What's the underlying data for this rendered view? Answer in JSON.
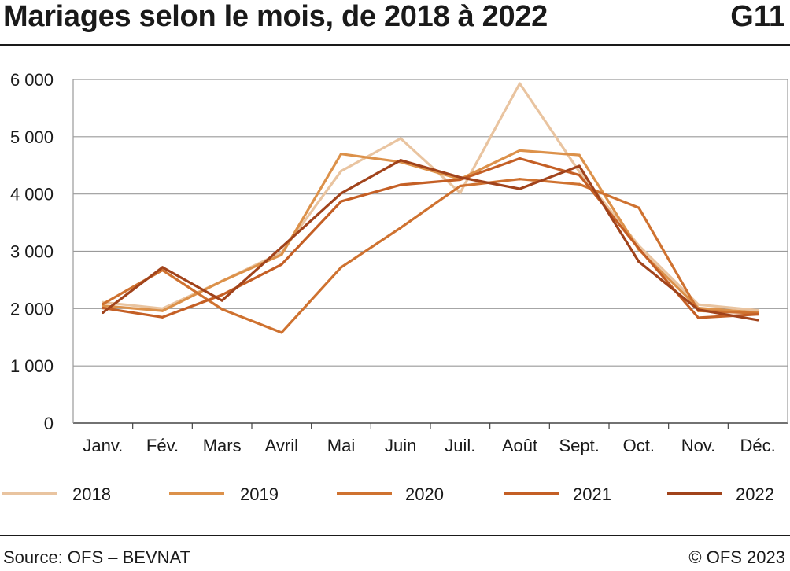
{
  "header": {
    "title": "Mariages selon le mois, de 2018 à 2022",
    "code": "G11"
  },
  "footer": {
    "source": "Source: OFS – BEVNAT",
    "copyright": "© OFS 2023"
  },
  "chart_data": {
    "type": "line",
    "title": "Mariages selon le mois, de 2018 à 2022",
    "xlabel": "",
    "ylabel": "",
    "ylim": [
      0,
      6000
    ],
    "yticks": [
      0,
      1000,
      2000,
      3000,
      4000,
      5000,
      6000
    ],
    "ytick_labels": [
      "0",
      "1 000",
      "2 000",
      "3 000",
      "4 000",
      "5 000",
      "6 000"
    ],
    "grid": true,
    "legend_position": "bottom",
    "categories": [
      "Janv.",
      "Fév.",
      "Mars",
      "Avril",
      "Mai",
      "Juin",
      "Juil.",
      "Août",
      "Sept.",
      "Oct.",
      "Nov.",
      "Déc."
    ],
    "series": [
      {
        "name": "2018",
        "color": "#e9c4a0",
        "values": [
          2110,
          2000,
          2480,
          2980,
          4400,
          4970,
          4020,
          5930,
          4390,
          3100,
          2070,
          1970
        ]
      },
      {
        "name": "2019",
        "color": "#dc914a",
        "values": [
          2050,
          1960,
          2480,
          2940,
          4700,
          4560,
          4260,
          4760,
          4680,
          3030,
          2010,
          1930
        ]
      },
      {
        "name": "2020",
        "color": "#cf7230",
        "values": [
          2080,
          2670,
          1990,
          1580,
          2720,
          3410,
          4140,
          4260,
          4170,
          3760,
          1960,
          1920
        ]
      },
      {
        "name": "2021",
        "color": "#c45f25",
        "values": [
          2010,
          1850,
          2240,
          2770,
          3870,
          4160,
          4250,
          4620,
          4330,
          3050,
          1840,
          1900
        ]
      },
      {
        "name": "2022",
        "color": "#a1431b",
        "values": [
          1930,
          2720,
          2140,
          3070,
          4010,
          4590,
          4290,
          4090,
          4490,
          2820,
          1980,
          1800
        ]
      }
    ]
  }
}
